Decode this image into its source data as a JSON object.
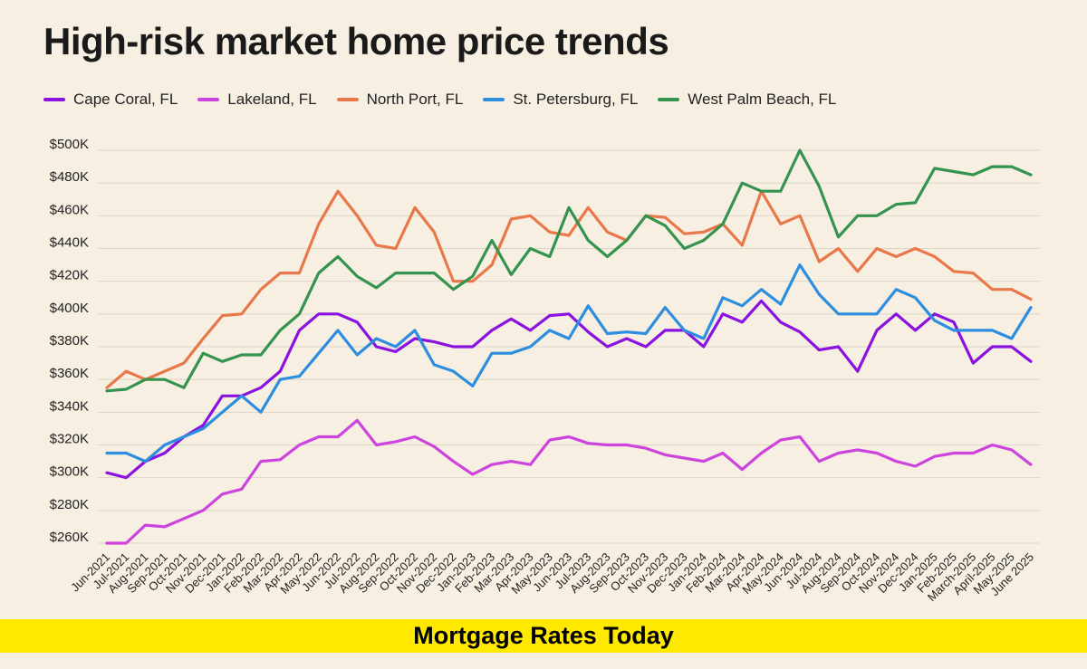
{
  "chart_data": {
    "type": "line",
    "title": "High-risk market home price trends",
    "xlabel": "",
    "ylabel": "",
    "ylim": [
      250000,
      510000
    ],
    "yticks": [
      260000,
      280000,
      300000,
      320000,
      340000,
      360000,
      380000,
      400000,
      420000,
      440000,
      460000,
      480000,
      500000
    ],
    "ytick_labels": [
      "$260K",
      "$280K",
      "$300K",
      "$320K",
      "$340K",
      "$360K",
      "$380K",
      "$400K",
      "$420K",
      "$440K",
      "$460K",
      "$480K",
      "$500K"
    ],
    "grid": "horizontal",
    "legend_position": "top-left",
    "categories": [
      "Jun-2021",
      "Jul-2021",
      "Aug-2021",
      "Sep-2021",
      "Oct-2021",
      "Nov-2021",
      "Dec-2021",
      "Jan-2022",
      "Feb-2022",
      "Mar-2022",
      "Apr-2022",
      "May-2022",
      "Jun-2022",
      "Jul-2022",
      "Aug-2022",
      "Sep-2022",
      "Oct-2022",
      "Nov-2022",
      "Dec-2022",
      "Jan-2023",
      "Feb-2023",
      "Mar-2023",
      "Apr-2023",
      "May-2023",
      "Jun-2023",
      "Jul-2023",
      "Aug-2023",
      "Sep-2023",
      "Oct-2023",
      "Nov-2023",
      "Dec-2023",
      "Jan-2024",
      "Feb-2024",
      "Mar-2024",
      "Apr-2024",
      "May-2024",
      "Jun-2024",
      "Jul-2024",
      "Aug-2024",
      "Sep-2024",
      "Oct-2024",
      "Nov-2024",
      "Dec-2024",
      "Jan-2025",
      "Feb-2025",
      "March-2025",
      "April-2025",
      "May-2025",
      "June 2025"
    ],
    "series": [
      {
        "name": "Cape Coral, FL",
        "color": "#8a12e0",
        "values": [
          303000,
          300000,
          310000,
          315000,
          325000,
          332000,
          350000,
          350000,
          355000,
          365000,
          390000,
          400000,
          400000,
          395000,
          380000,
          377000,
          385000,
          383000,
          380000,
          380000,
          390000,
          397000,
          390000,
          399000,
          400000,
          389000,
          380000,
          385000,
          380000,
          390000,
          390000,
          380000,
          400000,
          395000,
          408000,
          395000,
          389000,
          378000,
          380000,
          365000,
          390000,
          400000,
          390000,
          400000,
          395000,
          370000,
          380000,
          380000,
          371000
        ]
      },
      {
        "name": "Lakeland, FL",
        "color": "#cc44dd",
        "values": [
          260000,
          260000,
          271000,
          270000,
          275000,
          280000,
          290000,
          293000,
          310000,
          311000,
          320000,
          325000,
          325000,
          335000,
          320000,
          322000,
          325000,
          319000,
          310000,
          302000,
          308000,
          310000,
          308000,
          323000,
          325000,
          321000,
          320000,
          320000,
          318000,
          314000,
          312000,
          310000,
          315000,
          305000,
          315000,
          323000,
          325000,
          310000,
          315000,
          317000,
          315000,
          310000,
          307000,
          313000,
          315000,
          315000,
          320000,
          317000,
          308000
        ]
      },
      {
        "name": "North Port, FL",
        "color": "#e8784a",
        "values": [
          355000,
          365000,
          360000,
          365000,
          370000,
          385000,
          399000,
          400000,
          415000,
          425000,
          425000,
          455000,
          475000,
          460000,
          442000,
          440000,
          465000,
          450000,
          420000,
          420000,
          430000,
          458000,
          460000,
          450000,
          448000,
          465000,
          450000,
          445000,
          460000,
          459000,
          449000,
          450000,
          455000,
          442000,
          475000,
          455000,
          460000,
          432000,
          440000,
          426000,
          440000,
          435000,
          440000,
          435000,
          426000,
          425000,
          415000,
          415000,
          409000
        ]
      },
      {
        "name": "St. Petersburg, FL",
        "color": "#2d8ee0",
        "values": [
          315000,
          315000,
          310000,
          320000,
          325000,
          330000,
          340000,
          350000,
          340000,
          360000,
          362000,
          376000,
          390000,
          375000,
          385000,
          380000,
          390000,
          369000,
          365000,
          356000,
          376000,
          376000,
          380000,
          390000,
          385000,
          405000,
          388000,
          389000,
          388000,
          404000,
          390000,
          385000,
          410000,
          405000,
          415000,
          406000,
          430000,
          412000,
          400000,
          400000,
          400000,
          415000,
          410000,
          396000,
          390000,
          390000,
          390000,
          385000,
          404000
        ]
      },
      {
        "name": "West Palm Beach, FL",
        "color": "#34944f",
        "values": [
          353000,
          354000,
          360000,
          360000,
          355000,
          376000,
          371000,
          375000,
          375000,
          390000,
          400000,
          425000,
          435000,
          423000,
          416000,
          425000,
          425000,
          425000,
          415000,
          423000,
          445000,
          424000,
          440000,
          435000,
          465000,
          445000,
          435000,
          445000,
          460000,
          454000,
          440000,
          445000,
          455000,
          480000,
          475000,
          475000,
          500000,
          478000,
          447000,
          460000,
          460000,
          467000,
          468000,
          489000,
          487000,
          485000,
          490000,
          490000,
          485000
        ]
      }
    ]
  },
  "banner": {
    "text": "Mortgage Rates Today",
    "background": "#ffe900"
  }
}
